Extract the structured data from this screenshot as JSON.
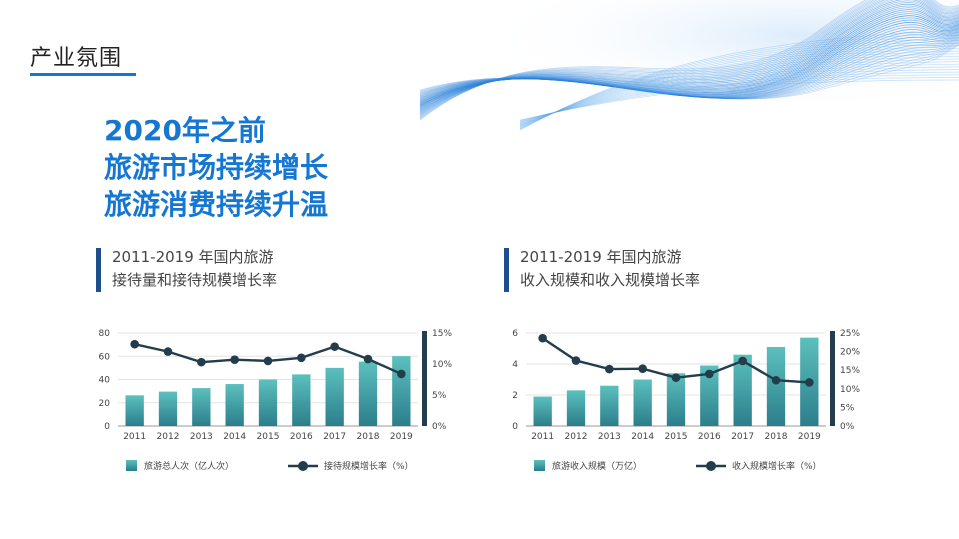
{
  "header": {
    "title": "产业氛围"
  },
  "headline": [
    "2020年之前",
    "旅游市场持续增长",
    "旅游消费持续升温"
  ],
  "colors": {
    "accent": "#1677d2",
    "bar_top": "#5cc0bd",
    "bar_bottom": "#2b7e8c",
    "line": "#233d4d",
    "axis_bar": "#233d4d"
  },
  "chart_data": [
    {
      "type": "bar",
      "title_lines": [
        "2011-2019 年国内旅游",
        "接待量和接待规模增长率"
      ],
      "categories": [
        "2011",
        "2012",
        "2013",
        "2014",
        "2015",
        "2016",
        "2017",
        "2018",
        "2019"
      ],
      "series": [
        {
          "name": "旅游总人次（亿人次）",
          "type": "bar",
          "axis": "left",
          "values": [
            26.4,
            29.6,
            32.6,
            36.1,
            40.0,
            44.4,
            50.0,
            55.4,
            60.1
          ]
        },
        {
          "name": "接待规模增长率（%）",
          "type": "line",
          "axis": "right",
          "values": [
            13.2,
            12.0,
            10.3,
            10.7,
            10.5,
            11.0,
            12.8,
            10.8,
            8.4
          ]
        }
      ],
      "left_axis": {
        "ylim": [
          0,
          80
        ],
        "ticks": [
          "80",
          "60",
          "40",
          "20",
          "0"
        ]
      },
      "right_axis": {
        "ylim": [
          0,
          15
        ],
        "ticks": [
          "15%",
          "10%",
          "5%",
          "0%"
        ]
      },
      "legend_position": "bottom"
    },
    {
      "type": "bar",
      "title_lines": [
        "2011-2019 年国内旅游",
        "收入规模和收入规模增长率"
      ],
      "categories": [
        "2011",
        "2012",
        "2013",
        "2014",
        "2015",
        "2016",
        "2017",
        "2018",
        "2019"
      ],
      "series": [
        {
          "name": "旅游收入规模（万亿）",
          "type": "bar",
          "axis": "left",
          "values": [
            1.9,
            2.3,
            2.6,
            3.0,
            3.4,
            3.9,
            4.6,
            5.1,
            5.7
          ]
        },
        {
          "name": "收入规模增长率（%）",
          "type": "line",
          "axis": "right",
          "values": [
            23.6,
            17.6,
            15.3,
            15.4,
            13.0,
            14.0,
            17.5,
            12.3,
            11.7
          ]
        }
      ],
      "left_axis": {
        "ylim": [
          0,
          6
        ],
        "ticks": [
          "6",
          "4",
          "2",
          "0"
        ]
      },
      "right_axis": {
        "ylim": [
          0,
          25
        ],
        "ticks": [
          "25%",
          "20%",
          "15%",
          "10%",
          "5%",
          "0%"
        ]
      },
      "legend_position": "bottom"
    }
  ]
}
